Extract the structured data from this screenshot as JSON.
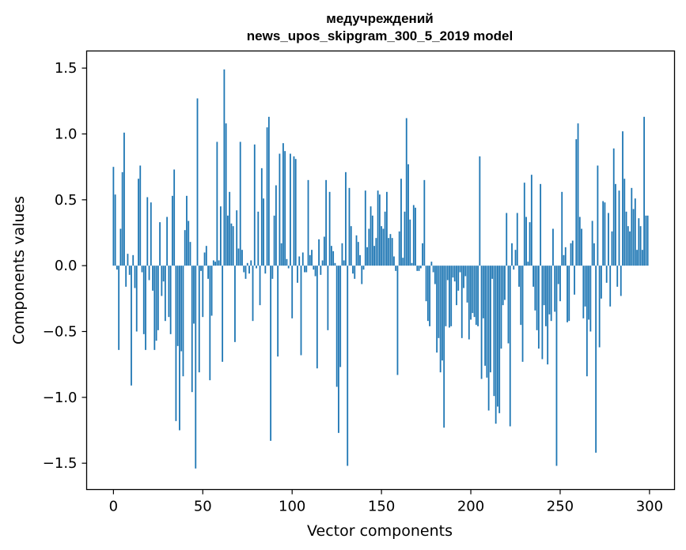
{
  "chart_data": {
    "type": "bar",
    "title": "медучреждений",
    "subtitle": "news_upos_skipgram_300_5_2019 model",
    "xlabel": "Vector components",
    "ylabel": "Components values",
    "xlim": [
      -15,
      314
    ],
    "ylim": [
      -1.7,
      1.63
    ],
    "xticks": [
      0,
      50,
      100,
      150,
      200,
      250,
      300
    ],
    "xtick_labels": [
      "0",
      "50",
      "100",
      "150",
      "200",
      "250",
      "300"
    ],
    "yticks": [
      -1.5,
      -1.0,
      -0.5,
      0.0,
      0.5,
      1.0,
      1.5
    ],
    "ytick_labels": [
      "−1.5",
      "−1.0",
      "−0.5",
      "0.0",
      "0.5",
      "1.0",
      "1.5"
    ],
    "bar_color": "#1f77b4",
    "categories_start": 0,
    "values": [
      0.75,
      0.54,
      -0.03,
      -0.64,
      0.28,
      0.71,
      1.01,
      -0.16,
      0.09,
      -0.07,
      -0.91,
      0.08,
      -0.17,
      -0.5,
      0.66,
      0.76,
      -0.05,
      -0.52,
      -0.64,
      0.52,
      -0.11,
      0.48,
      -0.19,
      -0.64,
      -0.57,
      -0.49,
      0.33,
      -0.23,
      -0.12,
      -0.42,
      0.37,
      -0.39,
      -0.52,
      0.53,
      0.73,
      -1.18,
      -0.61,
      -1.25,
      -0.65,
      -0.84,
      0.27,
      0.53,
      0.34,
      0.18,
      -0.96,
      -0.44,
      -1.54,
      1.27,
      -0.81,
      -0.04,
      -0.39,
      0.1,
      0.15,
      -0.1,
      -0.87,
      -0.38,
      0.04,
      0.03,
      0.94,
      0.04,
      0.45,
      -0.73,
      1.49,
      1.08,
      0.38,
      0.56,
      0.32,
      0.3,
      -0.58,
      0.42,
      0.13,
      0.94,
      0.12,
      -0.05,
      -0.1,
      0.02,
      -0.06,
      0.04,
      -0.42,
      0.92,
      -0.02,
      0.41,
      -0.3,
      0.74,
      0.51,
      -0.06,
      1.05,
      1.13,
      -1.33,
      -0.1,
      0.38,
      0.61,
      -0.69,
      0.85,
      0.17,
      0.93,
      0.87,
      0.05,
      -0.02,
      0.85,
      -0.4,
      0.83,
      0.81,
      -0.13,
      0.07,
      -0.68,
      0.1,
      -0.05,
      -0.05,
      0.65,
      0.08,
      0.12,
      -0.03,
      -0.08,
      -0.78,
      0.2,
      -0.07,
      0.04,
      0.22,
      0.65,
      -0.49,
      0.56,
      0.15,
      0.11,
      0.02,
      -0.92,
      -1.27,
      -0.77,
      0.17,
      0.04,
      0.71,
      -1.52,
      0.59,
      0.3,
      -0.06,
      -0.1,
      0.23,
      0.18,
      0.08,
      -0.14,
      -0.03,
      0.57,
      0.14,
      0.28,
      0.45,
      0.38,
      0.15,
      0.21,
      0.57,
      0.54,
      0.3,
      0.28,
      0.41,
      0.56,
      0.21,
      0.24,
      0.21,
      0.07,
      -0.04,
      -0.83,
      0.26,
      0.66,
      0.06,
      0.41,
      1.12,
      0.77,
      0.35,
      0.02,
      0.46,
      0.44,
      -0.04,
      -0.04,
      -0.02,
      0.17,
      0.65,
      -0.27,
      -0.42,
      -0.46,
      0.03,
      -0.05,
      -0.14,
      -0.66,
      -0.55,
      -0.81,
      -0.72,
      -1.23,
      -0.46,
      -0.11,
      -0.47,
      -0.46,
      -0.09,
      -0.12,
      -0.3,
      -0.19,
      -0.05,
      -0.55,
      -0.17,
      -0.08,
      -0.28,
      -0.56,
      -0.41,
      -0.36,
      -0.39,
      -0.45,
      -0.46,
      0.83,
      -0.86,
      -0.4,
      -0.76,
      -0.85,
      -1.1,
      -0.81,
      -0.1,
      -0.99,
      -1.2,
      -1.07,
      -1.12,
      -0.63,
      -0.3,
      -0.26,
      0.4,
      -0.59,
      -1.22,
      0.17,
      -0.03,
      0.12,
      0.4,
      -0.16,
      -0.45,
      -0.73,
      0.63,
      0.37,
      0.03,
      0.33,
      0.69,
      -0.16,
      -0.34,
      -0.49,
      -0.63,
      0.62,
      -0.71,
      -0.3,
      -0.46,
      -0.75,
      -0.37,
      -0.42,
      0.28,
      -0.35,
      -1.52,
      -0.14,
      -0.27,
      0.56,
      0.08,
      0.14,
      -0.43,
      -0.42,
      0.17,
      0.19,
      -0.22,
      0.96,
      1.08,
      0.37,
      0.28,
      -0.4,
      -0.31,
      -0.84,
      -0.41,
      -0.5,
      0.34,
      0.17,
      -1.42,
      0.76,
      -0.62,
      -0.25,
      0.49,
      0.48,
      -0.13,
      0.4,
      -0.31,
      0.26,
      0.89,
      0.62,
      -0.16,
      0.57,
      -0.23,
      1.02,
      0.66,
      0.41,
      0.3,
      0.26,
      0.59,
      0.43,
      0.51,
      0.12,
      0.36,
      0.3,
      0.12,
      1.13,
      0.38,
      0.38
    ]
  }
}
